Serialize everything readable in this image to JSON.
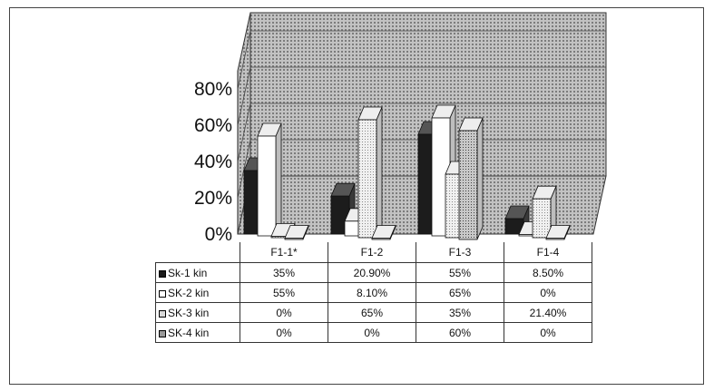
{
  "chart_data": {
    "type": "bar",
    "categories": [
      "F1-1*",
      "F1-2",
      "F1-3",
      "F1-4"
    ],
    "series": [
      {
        "name": "Sk-1 kin",
        "values": [
          "35%",
          "20.90%",
          "55%",
          "8.50%"
        ],
        "color": "#1a1a1a"
      },
      {
        "name": "SK-2 kin",
        "values": [
          "55%",
          "8.10%",
          "65%",
          "0%"
        ],
        "color": "#ffffff"
      },
      {
        "name": "SK-3 kin",
        "values": [
          "0%",
          "65%",
          "35%",
          "21.40%"
        ],
        "color": "#d8d8d8"
      },
      {
        "name": "SK-4 kin",
        "values": [
          "0%",
          "0%",
          "60%",
          "0%"
        ],
        "color": "#9a9a9a"
      }
    ],
    "yticks": [
      "0%",
      "20%",
      "40%",
      "60%",
      "80%"
    ],
    "ylim": [
      0,
      80
    ],
    "legend": "data-table",
    "grid": true
  }
}
